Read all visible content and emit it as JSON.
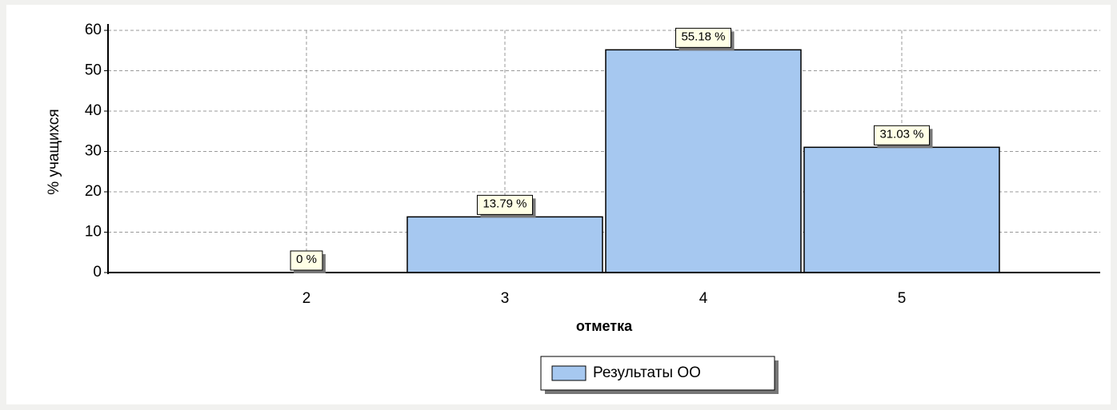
{
  "chart_data": {
    "type": "bar",
    "categories": [
      "2",
      "3",
      "4",
      "5"
    ],
    "values": [
      0,
      13.79,
      55.18,
      31.03
    ],
    "value_labels": [
      "0 %",
      "13.79 %",
      "55.18 %",
      "31.03 %"
    ],
    "series_name": "Результаты ОО",
    "color": "#a6c8f0",
    "x_label": "отметка",
    "y_label": "% учащихся",
    "ylim": [
      0,
      60
    ],
    "yticks": [
      0,
      10,
      20,
      30,
      40,
      50,
      60
    ],
    "grid": true
  }
}
